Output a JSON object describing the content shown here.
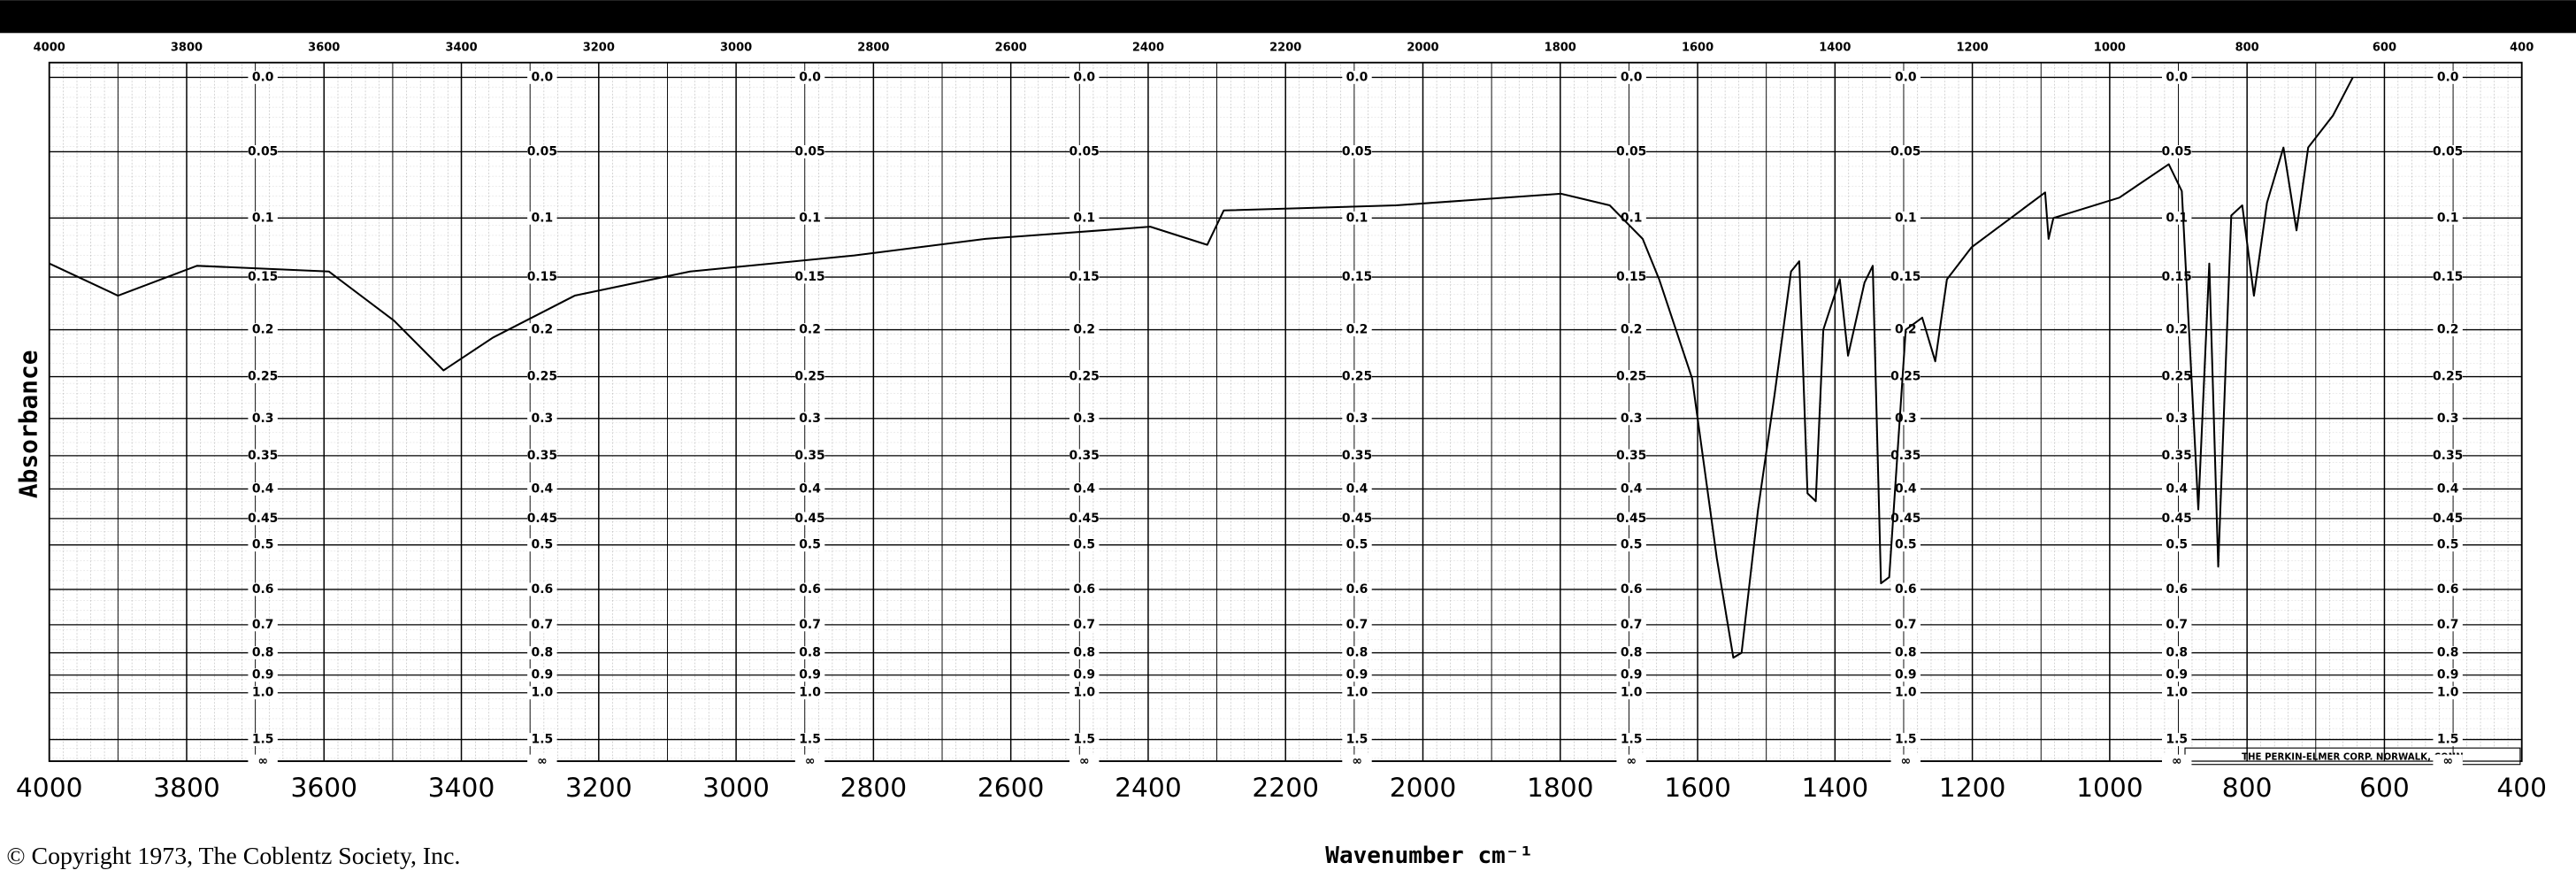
{
  "chart_data": {
    "type": "line",
    "xlabel": "Wavenumber cm⁻¹",
    "ylabel": "Absorbance",
    "footer": "© Copyright 1973, The Coblentz Society, Inc.",
    "maker": "THE PERKIN-ELMER CORP. NORWALK, CONN",
    "xlim": [
      4000,
      400
    ],
    "xticks": [
      4000,
      3800,
      3600,
      3400,
      3200,
      3000,
      2800,
      2600,
      2400,
      2200,
      2000,
      1800,
      1600,
      1400,
      1200,
      1000,
      800,
      600,
      400
    ],
    "ylim": [
      0,
      null
    ],
    "yscale": "transmittance",
    "yticks": [
      {
        "value": 0,
        "label": "0.0"
      },
      0.05,
      0.1,
      0.15,
      0.2,
      0.25,
      0.3,
      0.35,
      0.4,
      0.45,
      0.5,
      0.6,
      0.7,
      0.8,
      0.9,
      {
        "value": 1,
        "label": "1.0"
      },
      1.5,
      {
        "value": null,
        "label": "∞"
      }
    ],
    "grid": true,
    "color": "#000000",
    "x": [
      4000,
      3900,
      3785,
      3593,
      3498,
      3426,
      3354,
      3235,
      3067,
      2948,
      2828,
      2637,
      2397,
      2314,
      2290,
      2039,
      1799,
      1728,
      1680,
      1656,
      1608,
      1572,
      1548,
      1536,
      1512,
      1488,
      1464,
      1452,
      1440,
      1428,
      1417,
      1393,
      1381,
      1357,
      1345,
      1333,
      1321,
      1297,
      1273,
      1254,
      1237,
      1201,
      1094,
      1089,
      1082,
      986,
      914,
      895,
      871,
      855,
      842,
      823,
      807,
      790,
      771,
      747,
      728,
      711,
      675,
      646
    ],
    "values": [
      0.138,
      0.167,
      0.14,
      0.145,
      0.191,
      0.243,
      0.208,
      0.167,
      0.145,
      0.138,
      0.131,
      0.117,
      0.107,
      0.122,
      0.094,
      0.09,
      0.081,
      0.09,
      0.117,
      0.152,
      0.252,
      0.528,
      0.82,
      0.8,
      0.434,
      0.271,
      0.145,
      0.136,
      0.407,
      0.42,
      0.2,
      0.152,
      0.227,
      0.155,
      0.14,
      0.585,
      0.57,
      0.2,
      0.188,
      0.233,
      0.152,
      0.124,
      0.08,
      0.117,
      0.1,
      0.084,
      0.059,
      0.079,
      0.434,
      0.138,
      0.546,
      0.098,
      0.09,
      0.167,
      0.088,
      0.047,
      0.11,
      0.047,
      0.025,
      0
    ]
  }
}
